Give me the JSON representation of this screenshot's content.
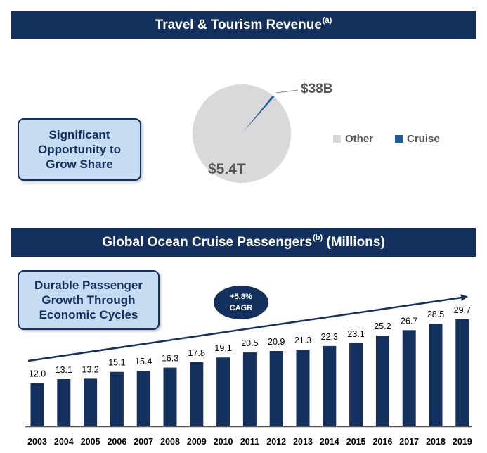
{
  "section1": {
    "title": "Travel & Tourism Revenue",
    "title_note": "(a)"
  },
  "section2": {
    "title_main": "Global Ocean Cruise Passengers",
    "title_note": "(b)",
    "title_suffix": " (Millions)"
  },
  "callouts": {
    "opportunity": "Significant\nOpportunity to\nGrow Share",
    "durable": "Durable Passenger\nGrowth Through\nEconomic Cycles"
  },
  "cagr": {
    "value": "+5.8%",
    "label": "CAGR"
  },
  "colors": {
    "navy": "#14305c",
    "other_gray": "#d9d9d9",
    "cruise_blue": "#1f5c99"
  },
  "chart_data": [
    {
      "type": "pie",
      "title": "Travel & Tourism Revenue",
      "slices": [
        {
          "label": "Other",
          "value": 5400,
          "display": "$5.4T"
        },
        {
          "label": "Cruise",
          "value": 38,
          "display": "$38B"
        }
      ],
      "legend": [
        "Other",
        "Cruise"
      ],
      "legend_position": "right"
    },
    {
      "type": "bar",
      "title": "Global Ocean Cruise Passengers (Millions)",
      "categories": [
        "2003",
        "2004",
        "2005",
        "2006",
        "2007",
        "2008",
        "2009",
        "2010",
        "2011",
        "2012",
        "2013",
        "2014",
        "2015",
        "2016",
        "2017",
        "2018",
        "2019"
      ],
      "values": [
        12.0,
        13.1,
        13.2,
        15.1,
        15.4,
        16.3,
        17.8,
        19.1,
        20.5,
        20.9,
        21.3,
        22.3,
        23.1,
        25.2,
        26.7,
        28.5,
        29.7
      ],
      "labels": [
        "12.0",
        "13.1",
        "13.2",
        "15.1",
        "15.4",
        "16.3",
        "17.8",
        "19.1",
        "20.5",
        "20.9",
        "21.3",
        "22.3",
        "23.1",
        "25.2",
        "26.7",
        "28.5",
        "29.7"
      ],
      "ylim": [
        0,
        30
      ],
      "annotation": "+5.8% CAGR"
    }
  ]
}
